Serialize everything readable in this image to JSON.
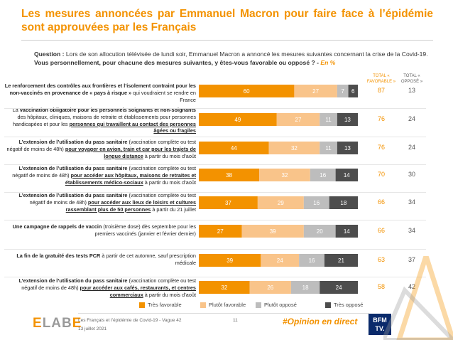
{
  "title": "Les mesures annoncées par Emmanuel Macron pour faire face à l’épidémie sont approuvées par les Français",
  "question": {
    "prefix": "Question : ",
    "text": "Lors de son allocution télévisée de lundi soir, Emmanuel Macron a annoncé les mesures suivantes concernant la crise de la Covid-19. ",
    "bold": "Vous personnellement, pour chacune des mesures suivantes, y êtes-vous favorable ou opposé ? - ",
    "unit": "En %"
  },
  "columns": {
    "fav": "TOTAL « FAVORABLE »",
    "opp": "TOTAL « OPPOSÉ »"
  },
  "colors": {
    "tres_favorable": "#f39200",
    "plutot_favorable": "#f9c48a",
    "plutot_oppose": "#bdbdbd",
    "tres_oppose": "#4d4d4d",
    "accent": "#f39200"
  },
  "chart_data": {
    "type": "bar",
    "stacked": true,
    "orientation": "horizontal",
    "series": [
      {
        "name": "Très favorable",
        "values": [
          60,
          49,
          44,
          38,
          37,
          27,
          39,
          32
        ]
      },
      {
        "name": "Plutôt favorable",
        "values": [
          27,
          27,
          32,
          32,
          29,
          39,
          24,
          26
        ]
      },
      {
        "name": "Plutôt opposé",
        "values": [
          7,
          11,
          11,
          16,
          16,
          20,
          16,
          18
        ]
      },
      {
        "name": "Très opposé",
        "values": [
          6,
          13,
          13,
          14,
          18,
          14,
          21,
          24
        ]
      }
    ],
    "total_favorable": [
      87,
      76,
      76,
      70,
      66,
      66,
      63,
      58
    ],
    "total_oppose": [
      13,
      24,
      24,
      30,
      34,
      34,
      37,
      42
    ],
    "categories": [
      "Le renforcement des contrôles aux frontières et l’isolement contraint pour les non-vaccinés en provenance de « pays à risque » qui voudraient se rendre en France",
      "La vaccination obligatoire pour les personnels soignants et non-soignants des hôpitaux, cliniques, maisons de retraite et établissements pour personnes handicapées et pour les personnes qui travaillent au contact des personnes âgées ou fragiles",
      "L’extension de l’utilisation du pass sanitaire (vaccination complète ou test négatif de moins de 48h) pour voyager en avion, train et car pour les trajets de longue distance à partir du mois d’août",
      "L’extension de l’utilisation du pass sanitaire (vaccination complète ou test négatif de moins de 48h) pour accéder aux hôpitaux, maisons de retraites et établissements médico-sociaux à partir du mois d’août",
      "L’extension de l’utilisation du pass sanitaire (vaccination complète ou test négatif de moins de 48h) pour accéder aux lieux de loisirs et cultures rassemblant plus de 50 personnes à partir du 21 juillet",
      "Une campagne de rappels de vaccin (troisième dose) dès septembre pour les premiers vaccinés (janvier et février dernier)",
      "La fin de la gratuité des tests PCR à partir de cet automne, sauf prescription médicale",
      "L’extension de l’utilisation du pass sanitaire (vaccination complète ou test négatif de moins de 48h) pour accéder aux cafés, restaurants, et centres commerciaux à partir du mois d’août"
    ],
    "xlim": [
      0,
      100
    ],
    "legend": "bottom"
  },
  "rows": [
    {
      "pre": "",
      "b1": "Le renforcement des contrôles aux frontières et l’isolement contraint pour les non-vaccinés en provenance de « pays à risque »",
      "post": " qui voudraient se rendre en France"
    },
    {
      "pre": "La ",
      "b1": "vaccination obligatoire pour les personnels soignants et non-soignants",
      "post": " des hôpitaux, cliniques, maisons de retraite et établissements pour personnes handicapées et pour les ",
      "b2": "personnes qui travaillent au contact des personnes âgées ou fragiles"
    },
    {
      "pre": "",
      "b1": "L’extension de l’utilisation du pass sanitaire",
      "post": " (vaccination complète ou test négatif de moins de 48h) ",
      "b2": "pour voyager en avion, train et car pour les trajets de longue distance",
      "post2": " à partir du mois d’août"
    },
    {
      "pre": "",
      "b1": "L’extension de l’utilisation du pass sanitaire",
      "post": " (vaccination complète ou test négatif de moins de 48h) ",
      "b2": "pour accéder aux hôpitaux, maisons de retraites et établissements médico-sociaux",
      "post2": " à partir du mois d’août"
    },
    {
      "pre": "",
      "b1": "L’extension de l’utilisation du pass sanitaire",
      "post": " (vaccination complète ou test négatif de moins de 48h) ",
      "b2": "pour accéder aux lieux de loisirs et cultures rassemblant plus de 50 personnes",
      "post2": " à partir du 21 juillet"
    },
    {
      "pre": "",
      "b1": "Une campagne de rappels de vaccin",
      "post": " (troisième dose) dès septembre pour les premiers vaccinés (janvier et février dernier)"
    },
    {
      "pre": "",
      "b1": "La fin de la gratuité des tests PCR",
      "post": " à partir de cet automne, sauf prescription médicale"
    },
    {
      "pre": "",
      "b1": "L’extension de l’utilisation du pass sanitaire",
      "post": " (vaccination complète ou test négatif de moins de 48h) ",
      "b2": "pour accéder aux cafés, restaurants, et centres commerciaux",
      "post2": " à partir du mois d’août"
    }
  ],
  "legend": [
    "Très favorable",
    "Plutôt favorable",
    "Plutôt opposé",
    "Très opposé"
  ],
  "footer": {
    "logo_left": "E",
    "logo_mid": "LAB",
    "logo_right": "E",
    "study": "Les Français et l’épidémie de Covid-19 - Vague 42",
    "date": "13 juillet 2021",
    "page": "11",
    "hashtag": "#Opinion en direct",
    "partner_line1": "BFM",
    "partner_line2": "TV."
  }
}
